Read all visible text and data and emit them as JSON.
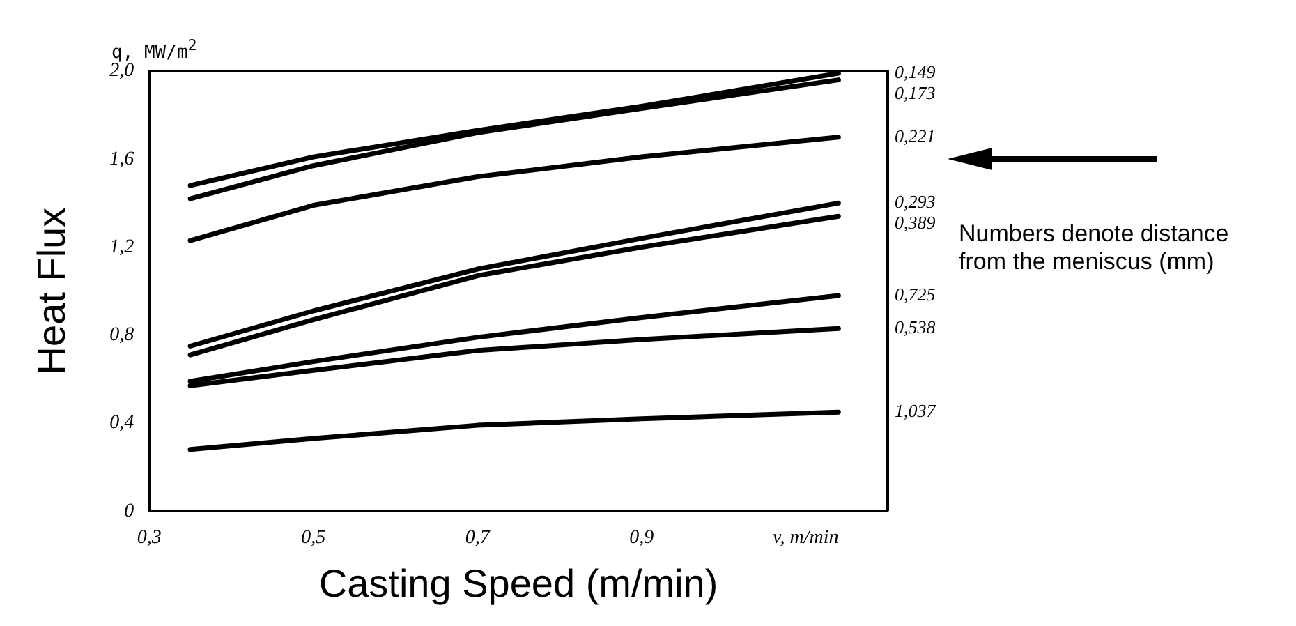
{
  "chart_data": {
    "type": "line",
    "xlabel": "Casting Speed (m/min)",
    "ylabel": "Heat Flux",
    "x": [
      0.35,
      0.5,
      0.7,
      0.9,
      1.14
    ],
    "series": [
      {
        "name": "0,149",
        "color": "#000000",
        "values": [
          1.48,
          1.61,
          1.73,
          1.84,
          1.99
        ]
      },
      {
        "name": "0,173",
        "color": "#000000",
        "values": [
          1.42,
          1.57,
          1.72,
          1.83,
          1.96
        ]
      },
      {
        "name": "0,221",
        "color": "#000000",
        "values": [
          1.23,
          1.39,
          1.52,
          1.61,
          1.7
        ]
      },
      {
        "name": "0,293",
        "color": "#000000",
        "values": [
          0.75,
          0.91,
          1.1,
          1.24,
          1.4
        ]
      },
      {
        "name": "0,389",
        "color": "#000000",
        "values": [
          0.71,
          0.87,
          1.07,
          1.2,
          1.34
        ]
      },
      {
        "name": "0,725",
        "color": "#000000",
        "values": [
          0.59,
          0.68,
          0.79,
          0.88,
          0.98
        ]
      },
      {
        "name": "0,538",
        "color": "#000000",
        "values": [
          0.57,
          0.64,
          0.73,
          0.78,
          0.83
        ]
      },
      {
        "name": "1,037",
        "color": "#000000",
        "values": [
          0.28,
          0.33,
          0.39,
          0.42,
          0.45
        ]
      }
    ],
    "xlim": [
      0.3,
      1.2
    ],
    "xticks": [
      {
        "value": 0.3,
        "label": "0,3"
      },
      {
        "value": 0.5,
        "label": "0,5"
      },
      {
        "value": 0.7,
        "label": "0,7"
      },
      {
        "value": 0.9,
        "label": "0,9"
      },
      {
        "value": 1.1,
        "label": "v, m/min"
      }
    ],
    "ylim": [
      0,
      2.0
    ],
    "yticks": [
      0,
      {
        "value": 0.4,
        "label": "0,4"
      },
      {
        "value": 0.8,
        "label": "0,8"
      },
      {
        "value": 1.2,
        "label": "1,2"
      },
      {
        "value": 1.6,
        "label": "1,6"
      },
      {
        "value": 2.0,
        "label": "2,0"
      }
    ],
    "annotations": [
      "q, MW/m$^{2}$",
      "Numbers denote distance from the meniscus (mm)"
    ],
    "legend": false,
    "marker": "none",
    "line_style": "solid"
  }
}
